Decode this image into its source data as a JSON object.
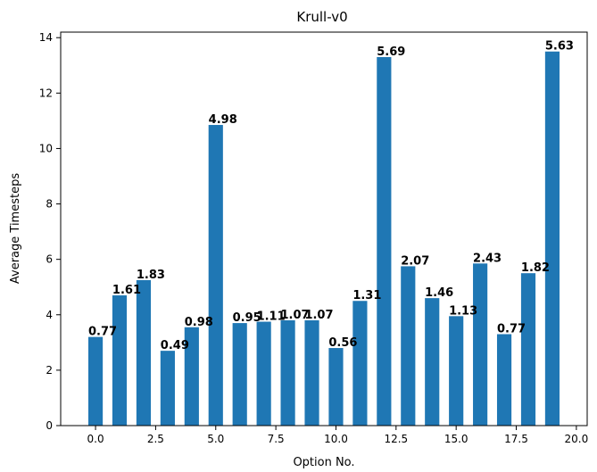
{
  "chart_data": {
    "type": "bar",
    "title": "Krull-v0",
    "xlabel": "Option No.",
    "ylabel": "Average Timesteps",
    "x": [
      0,
      1,
      2,
      3,
      4,
      5,
      6,
      7,
      8,
      9,
      10,
      11,
      12,
      13,
      14,
      15,
      16,
      17,
      18,
      19
    ],
    "values": [
      3.2,
      4.7,
      5.25,
      2.7,
      3.55,
      10.85,
      3.7,
      3.75,
      3.8,
      3.8,
      2.8,
      4.5,
      13.3,
      5.75,
      4.6,
      3.95,
      5.85,
      3.3,
      5.5,
      13.5
    ],
    "data_labels": [
      "0.77",
      "1.61",
      "1.83",
      "0.49",
      "0.98",
      "4.98",
      "0.95",
      "1.11",
      "1.07",
      "1.07",
      "0.56",
      "1.31",
      "5.69",
      "2.07",
      "1.46",
      "1.13",
      "2.43",
      "0.77",
      "1.82",
      "5.63"
    ],
    "xlim": [
      -1.45,
      20.45
    ],
    "ylim": [
      0,
      14.2
    ],
    "xticks": [
      "0.0",
      "2.5",
      "5.0",
      "7.5",
      "10.0",
      "12.5",
      "15.0",
      "17.5",
      "20.0"
    ],
    "yticks": [
      "0",
      "2",
      "4",
      "6",
      "8",
      "10",
      "12",
      "14"
    ],
    "bar_width": 0.6,
    "color": "#1f77b4",
    "grid": false,
    "legend": false
  }
}
